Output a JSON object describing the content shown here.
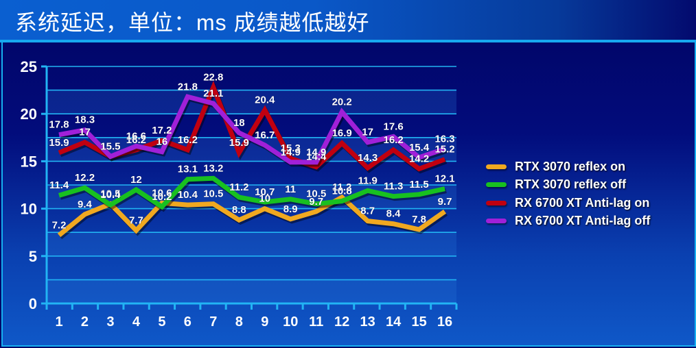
{
  "header": {
    "title": "系统延迟，单位：ms 成绩越低越好"
  },
  "colors": {
    "orange": "#f0a820",
    "green": "#18c020",
    "red": "#c00010",
    "purple": "#a020d8",
    "grid": "#22b4f4",
    "axis": "#22b4f4"
  },
  "chart_data": {
    "type": "line",
    "title": "系统延迟，单位：ms 成绩越低越好",
    "xlabel": "",
    "ylabel": "",
    "x": [
      1,
      2,
      3,
      4,
      5,
      6,
      7,
      8,
      9,
      10,
      11,
      12,
      13,
      14,
      15,
      16
    ],
    "x_ticks": [
      "1",
      "2",
      "3",
      "4",
      "5",
      "6",
      "7",
      "8",
      "9",
      "10",
      "11",
      "12",
      "13",
      "14",
      "15",
      "16"
    ],
    "y_ticks": [
      "0",
      "5",
      "10",
      "15",
      "20",
      "25"
    ],
    "ylim": [
      0,
      25
    ],
    "grid": true,
    "legend_position": "right",
    "series": [
      {
        "name": "RTX 3070 reflex on",
        "color": "#f0a820",
        "values": [
          7.2,
          9.4,
          10.5,
          7.7,
          10.6,
          10.4,
          10.5,
          8.8,
          10,
          8.9,
          9.7,
          11.2,
          8.7,
          8.4,
          7.8,
          9.7
        ]
      },
      {
        "name": "RTX 3070 reflex off",
        "color": "#18c020",
        "values": [
          11.4,
          12.2,
          10.4,
          12,
          10.2,
          13.1,
          13.2,
          11.2,
          10.7,
          11,
          10.5,
          10.8,
          11.9,
          11.3,
          11.5,
          12.1
        ]
      },
      {
        "name": "RX 6700 XT Anti-lag on",
        "color": "#c00010",
        "values": [
          15.9,
          17,
          15.5,
          16.2,
          17.2,
          16.2,
          22.8,
          15.9,
          20.4,
          15.3,
          14.4,
          16.9,
          14.3,
          16.2,
          14.2,
          15.2
        ]
      },
      {
        "name": "RX 6700 XT Anti-lag off",
        "color": "#a020d8",
        "values": [
          17.8,
          18.3,
          15.5,
          16.6,
          16,
          21.8,
          21.1,
          18,
          16.7,
          14.9,
          14.9,
          20.2,
          17,
          17.6,
          15.4,
          16.3
        ]
      }
    ]
  },
  "legend": {
    "items": [
      {
        "label": "RTX 3070 reflex on",
        "color": "#f0a820"
      },
      {
        "label": "RTX 3070 reflex off",
        "color": "#18c020"
      },
      {
        "label": "RX 6700 XT Anti-lag on",
        "color": "#c00010"
      },
      {
        "label": "RX 6700 XT Anti-lag off",
        "color": "#a020d8"
      }
    ]
  }
}
